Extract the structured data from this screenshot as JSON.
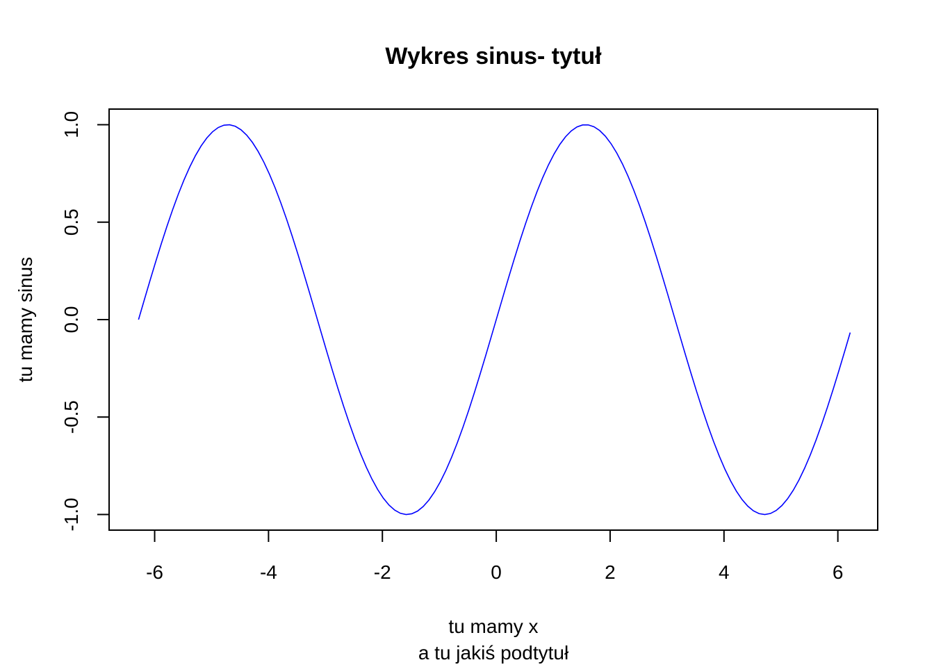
{
  "chart_data": {
    "type": "line",
    "title": "Wykres sinus- tytuł",
    "xlabel": "tu mamy x",
    "subtitle": "a tu jakiś podtytuł",
    "ylabel": "tu mamy sinus",
    "xlim": [
      -6.8,
      6.7
    ],
    "ylim": [
      -1.08,
      1.08
    ],
    "x_ticks": [
      -6,
      -4,
      -2,
      0,
      2,
      4,
      6
    ],
    "x_tick_labels": [
      "-6",
      "-4",
      "-2",
      "0",
      "2",
      "4",
      "6"
    ],
    "y_ticks": [
      -1.0,
      -0.5,
      0.0,
      0.5,
      1.0
    ],
    "y_tick_labels": [
      "-1.0",
      "-0.5",
      "0.0",
      "0.5",
      "1.0"
    ],
    "grid": false,
    "series": [
      {
        "function": "sin(x)",
        "color": "#0000ff",
        "x_start": -6.2832,
        "x_end": 6.2168,
        "step": 0.1
      }
    ]
  }
}
